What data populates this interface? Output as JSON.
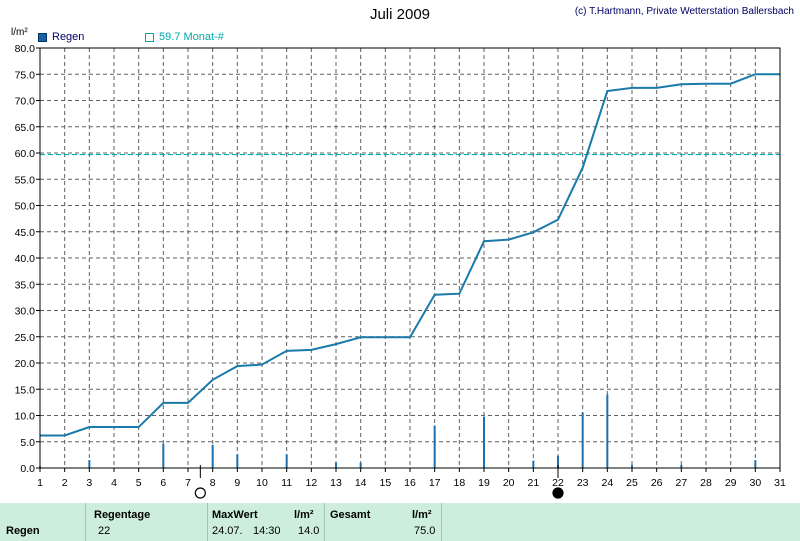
{
  "chart_data": {
    "type": "bar+line",
    "title": "Juli 2009",
    "copyright": "(c) T.Hartmann, Private Wetterstation Ballersbach",
    "ylabel": "l/m²",
    "ylim": [
      0,
      80
    ],
    "yticks": [
      "0.0",
      "5.0",
      "10.0",
      "15.0",
      "20.0",
      "25.0",
      "30.0",
      "35.0",
      "40.0",
      "45.0",
      "50.0",
      "55.0",
      "60.0",
      "65.0",
      "70.0",
      "75.0",
      "80.0"
    ],
    "xticks": [
      "1",
      "2",
      "3",
      "4",
      "5",
      "6",
      "7",
      "8",
      "9",
      "10",
      "11",
      "12",
      "13",
      "14",
      "15",
      "16",
      "17",
      "18",
      "19",
      "20",
      "21",
      "22",
      "23",
      "24",
      "25",
      "26",
      "27",
      "28",
      "29",
      "30",
      "31"
    ],
    "xlim": [
      1,
      31
    ],
    "grid": true,
    "legend": [
      {
        "label": "Regen",
        "color": "#1a5fa0"
      },
      {
        "label": "59.7 Monat-#",
        "color": "#00aaaa"
      }
    ],
    "monthly_average": 59.7,
    "daily_rain": {
      "name": "Regen",
      "x": [
        1,
        3,
        6,
        8,
        9,
        11,
        13,
        14,
        17,
        19,
        21,
        22,
        23,
        24,
        25,
        27,
        30
      ],
      "values": [
        0.3,
        1.5,
        4.6,
        4.4,
        2.6,
        2.6,
        1.0,
        1.0,
        8.1,
        9.8,
        1.4,
        2.3,
        10.6,
        14.0,
        0.6,
        0.6,
        1.5
      ]
    },
    "cumulative": {
      "x": [
        1,
        2,
        3,
        4,
        5,
        6,
        7,
        8,
        9,
        10,
        11,
        12,
        13,
        14,
        15,
        16,
        17,
        18,
        19,
        20,
        21,
        22,
        23,
        24,
        25,
        26,
        27,
        28,
        29,
        30,
        31
      ],
      "values": [
        6.2,
        6.2,
        7.8,
        7.8,
        7.8,
        12.4,
        12.4,
        16.8,
        19.4,
        19.7,
        22.3,
        22.5,
        23.6,
        24.9,
        24.9,
        24.9,
        33.0,
        33.2,
        43.2,
        43.5,
        44.9,
        47.3,
        57.2,
        71.8,
        72.4,
        72.4,
        73.1,
        73.2,
        73.2,
        75.0,
        75.0
      ]
    },
    "moon_phases": [
      {
        "day": 7.5,
        "phase": "full"
      },
      {
        "day": 22,
        "phase": "new"
      }
    ]
  },
  "stats": {
    "row_label": "Regen",
    "rain_days_header": "Regentage",
    "rain_days": "22",
    "max_header": "MaxWert",
    "max_unit": "l/m²",
    "max_date": "24.07.",
    "max_time": "14:30",
    "max_value": "14.0",
    "total_header": "Gesamt",
    "total_unit": "l/m²",
    "total_value": "75.0"
  }
}
